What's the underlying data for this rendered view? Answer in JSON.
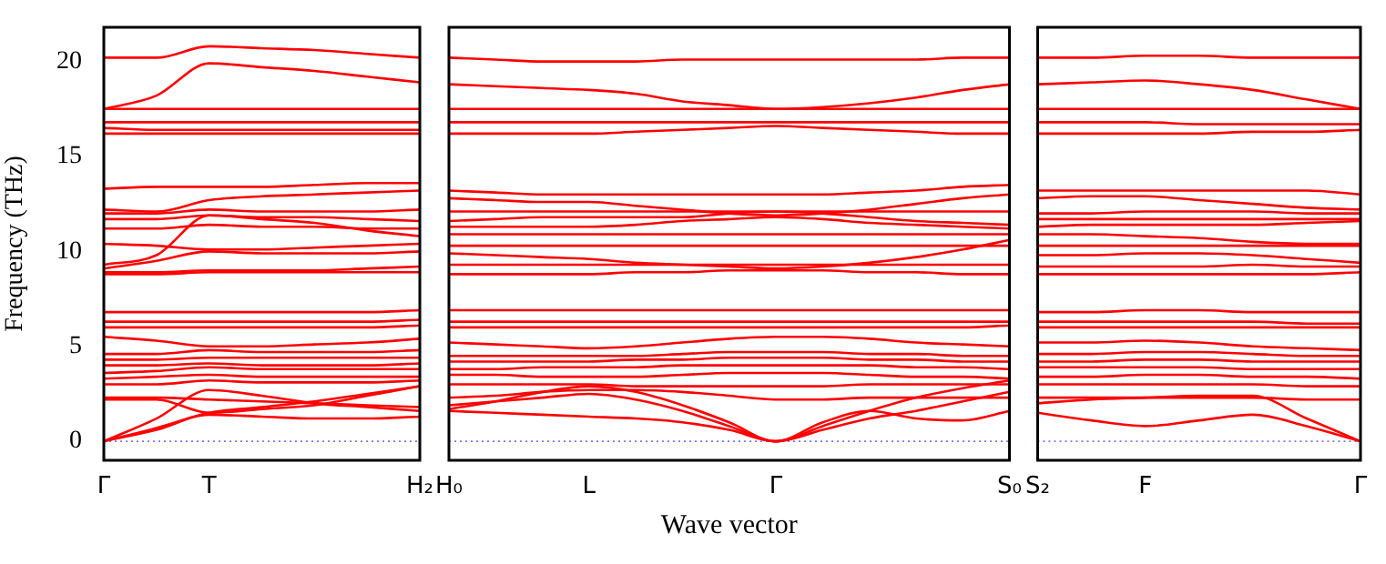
{
  "chart_data": [
    {
      "type": "line",
      "ylabel": "Frequency (THz)",
      "categories": [
        "Γ",
        null,
        "T",
        null,
        null,
        null,
        "H₂"
      ],
      "ylim": [
        -1,
        21.8
      ],
      "yticks": [
        0,
        5,
        10,
        15,
        20
      ],
      "ref_lines": [
        {
          "axis": "y",
          "value": 0,
          "color": "#7777ff",
          "line_style": "dotted"
        }
      ],
      "series": [
        {
          "color": "#ff0000",
          "values": [
            20.2,
            20.2,
            20.8,
            20.7,
            20.6,
            20.4,
            20.2
          ]
        },
        {
          "color": "#ff0000",
          "values": [
            17.5,
            18.2,
            19.9,
            19.7,
            19.5,
            19.2,
            18.9
          ]
        },
        {
          "color": "#ff0000",
          "values": [
            17.5,
            17.5,
            17.5,
            17.5,
            17.5,
            17.5,
            17.5
          ]
        },
        {
          "color": "#ff0000",
          "values": [
            16.8,
            16.8,
            16.8,
            16.8,
            16.8,
            16.8,
            16.8
          ]
        },
        {
          "color": "#ff0000",
          "values": [
            16.5,
            16.4,
            16.4,
            16.4,
            16.4,
            16.4,
            16.4
          ]
        },
        {
          "color": "#ff0000",
          "values": [
            16.2,
            16.2,
            16.2,
            16.2,
            16.2,
            16.2,
            16.2
          ]
        },
        {
          "color": "#ff0000",
          "values": [
            13.3,
            13.4,
            13.4,
            13.4,
            13.5,
            13.6,
            13.6
          ]
        },
        {
          "color": "#ff0000",
          "values": [
            12.2,
            12.1,
            12.7,
            12.9,
            13.0,
            13.1,
            13.2
          ]
        },
        {
          "color": "#ff0000",
          "values": [
            12.0,
            12.0,
            12.2,
            12.1,
            12.1,
            12.1,
            12.2
          ]
        },
        {
          "color": "#ff0000",
          "values": [
            11.7,
            11.7,
            11.9,
            11.8,
            11.8,
            11.7,
            11.6
          ]
        },
        {
          "color": "#ff0000",
          "values": [
            11.2,
            11.2,
            11.4,
            11.3,
            11.3,
            11.2,
            11.2
          ]
        },
        {
          "color": "#ff0000",
          "values": [
            10.4,
            10.3,
            10.1,
            10.1,
            10.2,
            10.3,
            10.4
          ]
        },
        {
          "color": "#ff0000",
          "values": [
            9.3,
            9.8,
            11.9,
            11.7,
            11.5,
            11.1,
            10.8
          ]
        },
        {
          "color": "#ff0000",
          "values": [
            9.1,
            9.5,
            10.0,
            9.9,
            9.9,
            9.9,
            10.0
          ]
        },
        {
          "color": "#ff0000",
          "values": [
            8.9,
            8.9,
            9.0,
            9.0,
            9.0,
            9.1,
            9.2
          ]
        },
        {
          "color": "#ff0000",
          "values": [
            8.8,
            8.8,
            8.9,
            8.9,
            8.9,
            8.9,
            8.9
          ]
        },
        {
          "color": "#ff0000",
          "values": [
            6.8,
            6.8,
            6.8,
            6.8,
            6.8,
            6.8,
            6.9
          ]
        },
        {
          "color": "#ff0000",
          "values": [
            6.3,
            6.3,
            6.3,
            6.3,
            6.3,
            6.3,
            6.4
          ]
        },
        {
          "color": "#ff0000",
          "values": [
            6.0,
            6.0,
            6.0,
            6.0,
            6.0,
            6.0,
            6.1
          ]
        },
        {
          "color": "#ff0000",
          "values": [
            5.5,
            5.3,
            5.0,
            5.0,
            5.1,
            5.2,
            5.4
          ]
        },
        {
          "color": "#ff0000",
          "values": [
            4.6,
            4.6,
            4.8,
            4.7,
            4.7,
            4.7,
            4.8
          ]
        },
        {
          "color": "#ff0000",
          "values": [
            4.3,
            4.3,
            4.4,
            4.4,
            4.4,
            4.4,
            4.4
          ]
        },
        {
          "color": "#ff0000",
          "values": [
            4.0,
            4.0,
            4.1,
            4.0,
            4.0,
            4.0,
            4.1
          ]
        },
        {
          "color": "#ff0000",
          "values": [
            3.6,
            3.7,
            3.9,
            3.8,
            3.8,
            3.8,
            3.8
          ]
        },
        {
          "color": "#ff0000",
          "values": [
            3.3,
            3.4,
            3.5,
            3.4,
            3.4,
            3.4,
            3.4
          ]
        },
        {
          "color": "#ff0000",
          "values": [
            3.0,
            3.0,
            3.2,
            3.1,
            3.1,
            3.1,
            3.2
          ]
        },
        {
          "color": "#ff0000",
          "values": [
            2.3,
            2.3,
            2.2,
            2.1,
            2.0,
            1.9,
            1.8
          ]
        },
        {
          "color": "#ff0000",
          "values": [
            2.2,
            2.2,
            1.5,
            1.7,
            1.9,
            2.4,
            2.9
          ]
        },
        {
          "color": "#ff0000",
          "values": [
            0,
            1.2,
            2.7,
            2.4,
            2.0,
            1.8,
            1.6
          ]
        },
        {
          "color": "#ff0000",
          "values": [
            0,
            0.7,
            1.5,
            1.8,
            2.1,
            2.5,
            2.9
          ]
        },
        {
          "color": "#ff0000",
          "values": [
            0,
            0.6,
            1.4,
            1.3,
            1.2,
            1.2,
            1.3
          ]
        }
      ]
    },
    {
      "type": "line",
      "xlabel": "Wave vector",
      "tick_labels": "x",
      "categories": [
        "H₀",
        null,
        null,
        "L",
        null,
        null,
        null,
        "Γ",
        null,
        null,
        null,
        null,
        "S₀"
      ],
      "ylim": [
        -1,
        21.8
      ],
      "yticks": [
        0,
        5,
        10,
        15,
        20
      ],
      "ref_lines": [
        {
          "axis": "y",
          "value": 0,
          "color": "#7777ff",
          "line_style": "dotted"
        }
      ],
      "series": [
        {
          "color": "#ff0000",
          "values": [
            20.2,
            20.1,
            20.0,
            20.0,
            20.0,
            20.1,
            20.1,
            20.1,
            20.1,
            20.1,
            20.1,
            20.2,
            20.2
          ]
        },
        {
          "color": "#ff0000",
          "values": [
            18.8,
            18.7,
            18.6,
            18.5,
            18.3,
            17.9,
            17.7,
            17.5,
            17.6,
            17.8,
            18.1,
            18.5,
            18.8
          ]
        },
        {
          "color": "#ff0000",
          "values": [
            17.5,
            17.5,
            17.5,
            17.5,
            17.5,
            17.5,
            17.5,
            17.5,
            17.5,
            17.5,
            17.5,
            17.5,
            17.5
          ]
        },
        {
          "color": "#ff0000",
          "values": [
            16.8,
            16.8,
            16.8,
            16.8,
            16.8,
            16.8,
            16.8,
            16.8,
            16.8,
            16.8,
            16.8,
            16.8,
            16.8
          ]
        },
        {
          "color": "#ff0000",
          "values": [
            16.2,
            16.2,
            16.2,
            16.2,
            16.3,
            16.4,
            16.5,
            16.6,
            16.5,
            16.4,
            16.3,
            16.2,
            16.2
          ]
        },
        {
          "color": "#ff0000",
          "values": [
            13.2,
            13.1,
            13.0,
            13.0,
            13.0,
            13.0,
            13.0,
            13.0,
            13.0,
            13.1,
            13.2,
            13.4,
            13.5
          ]
        },
        {
          "color": "#ff0000",
          "values": [
            12.8,
            12.7,
            12.6,
            12.6,
            12.4,
            12.2,
            12.0,
            11.9,
            12.0,
            12.2,
            12.5,
            12.8,
            13.0
          ]
        },
        {
          "color": "#ff0000",
          "values": [
            12.1,
            12.1,
            12.1,
            12.1,
            12.1,
            12.1,
            12.1,
            12.1,
            12.1,
            12.1,
            12.1,
            12.1,
            12.1
          ]
        },
        {
          "color": "#ff0000",
          "values": [
            11.6,
            11.7,
            11.8,
            11.8,
            11.8,
            11.8,
            12.0,
            12.1,
            12.0,
            11.8,
            11.6,
            11.5,
            11.4
          ]
        },
        {
          "color": "#ff0000",
          "values": [
            11.3,
            11.3,
            11.3,
            11.3,
            11.4,
            11.6,
            11.7,
            11.8,
            11.7,
            11.5,
            11.4,
            11.3,
            11.2
          ]
        },
        {
          "color": "#ff0000",
          "values": [
            10.9,
            10.9,
            10.9,
            10.9,
            10.9,
            10.9,
            10.9,
            10.9,
            10.9,
            10.9,
            10.9,
            10.9,
            10.9
          ]
        },
        {
          "color": "#ff0000",
          "values": [
            10.3,
            10.3,
            10.3,
            10.3,
            10.3,
            10.3,
            10.3,
            10.3,
            10.3,
            10.3,
            10.3,
            10.3,
            10.3
          ]
        },
        {
          "color": "#ff0000",
          "values": [
            9.9,
            9.8,
            9.7,
            9.6,
            9.4,
            9.3,
            9.2,
            9.1,
            9.2,
            9.4,
            9.7,
            10.1,
            10.6
          ]
        },
        {
          "color": "#ff0000",
          "values": [
            9.3,
            9.3,
            9.3,
            9.3,
            9.3,
            9.3,
            9.3,
            9.3,
            9.3,
            9.3,
            9.3,
            9.3,
            9.3
          ]
        },
        {
          "color": "#ff0000",
          "values": [
            8.8,
            8.8,
            8.8,
            8.8,
            8.9,
            8.9,
            9.0,
            9.0,
            9.0,
            8.9,
            8.9,
            8.8,
            8.8
          ]
        },
        {
          "color": "#ff0000",
          "values": [
            6.9,
            6.9,
            6.9,
            6.9,
            6.9,
            6.9,
            6.9,
            6.9,
            6.9,
            6.9,
            6.9,
            6.9,
            6.9
          ]
        },
        {
          "color": "#ff0000",
          "values": [
            6.3,
            6.3,
            6.3,
            6.3,
            6.3,
            6.3,
            6.3,
            6.3,
            6.3,
            6.3,
            6.3,
            6.3,
            6.3
          ]
        },
        {
          "color": "#ff0000",
          "values": [
            6.0,
            6.0,
            6.0,
            6.0,
            6.0,
            6.0,
            6.0,
            6.0,
            6.0,
            6.0,
            6.0,
            6.0,
            6.1
          ]
        },
        {
          "color": "#ff0000",
          "values": [
            5.2,
            5.1,
            5.0,
            4.9,
            5.0,
            5.2,
            5.4,
            5.5,
            5.5,
            5.4,
            5.2,
            5.1,
            5.0
          ]
        },
        {
          "color": "#ff0000",
          "values": [
            4.5,
            4.5,
            4.5,
            4.5,
            4.5,
            4.6,
            4.7,
            4.7,
            4.7,
            4.6,
            4.6,
            4.5,
            4.5
          ]
        },
        {
          "color": "#ff0000",
          "values": [
            4.2,
            4.2,
            4.2,
            4.2,
            4.3,
            4.3,
            4.4,
            4.4,
            4.4,
            4.3,
            4.3,
            4.2,
            4.2
          ]
        },
        {
          "color": "#ff0000",
          "values": [
            3.8,
            3.8,
            3.9,
            3.9,
            3.9,
            4.0,
            4.0,
            4.0,
            4.0,
            4.0,
            3.9,
            3.9,
            3.8
          ]
        },
        {
          "color": "#ff0000",
          "values": [
            3.5,
            3.5,
            3.4,
            3.4,
            3.4,
            3.5,
            3.6,
            3.6,
            3.6,
            3.5,
            3.4,
            3.4,
            3.3
          ]
        },
        {
          "color": "#ff0000",
          "values": [
            3.0,
            3.0,
            3.0,
            3.0,
            2.9,
            2.9,
            2.9,
            2.9,
            2.9,
            3.0,
            3.0,
            3.0,
            3.0
          ]
        },
        {
          "color": "#ff0000",
          "values": [
            2.3,
            2.4,
            2.6,
            2.7,
            2.7,
            2.6,
            2.4,
            2.2,
            2.2,
            2.3,
            2.3,
            2.3,
            2.3
          ]
        },
        {
          "color": "#ff0000",
          "values": [
            1.9,
            2.1,
            2.3,
            2.5,
            2.2,
            1.6,
            0.8,
            0,
            0.8,
            1.6,
            2.3,
            2.8,
            3.2
          ]
        },
        {
          "color": "#ff0000",
          "values": [
            1.6,
            1.5,
            1.4,
            1.3,
            1.2,
            1.0,
            0.6,
            0,
            0.6,
            1.2,
            1.6,
            2.1,
            2.6
          ]
        },
        {
          "color": "#ff0000",
          "values": [
            1.7,
            2.1,
            2.6,
            2.9,
            2.6,
            1.9,
            1.0,
            0,
            1.0,
            1.6,
            1.2,
            1.1,
            1.6
          ]
        }
      ]
    },
    {
      "type": "line",
      "tick_labels": "x",
      "categories": [
        "S₂",
        null,
        "F",
        null,
        null,
        null,
        "Γ"
      ],
      "ylim": [
        -1,
        21.8
      ],
      "yticks": [
        0,
        5,
        10,
        15,
        20
      ],
      "ref_lines": [
        {
          "axis": "y",
          "value": 0,
          "color": "#7777ff",
          "line_style": "dotted"
        }
      ],
      "series": [
        {
          "color": "#ff0000",
          "values": [
            20.2,
            20.2,
            20.3,
            20.3,
            20.2,
            20.2,
            20.2
          ]
        },
        {
          "color": "#ff0000",
          "values": [
            18.8,
            18.9,
            19.0,
            18.8,
            18.5,
            18.0,
            17.5
          ]
        },
        {
          "color": "#ff0000",
          "values": [
            17.5,
            17.5,
            17.5,
            17.5,
            17.5,
            17.5,
            17.5
          ]
        },
        {
          "color": "#ff0000",
          "values": [
            16.8,
            16.8,
            16.8,
            16.7,
            16.7,
            16.7,
            16.7
          ]
        },
        {
          "color": "#ff0000",
          "values": [
            16.2,
            16.2,
            16.2,
            16.2,
            16.3,
            16.3,
            16.4
          ]
        },
        {
          "color": "#ff0000",
          "values": [
            13.2,
            13.2,
            13.2,
            13.2,
            13.2,
            13.2,
            13.0
          ]
        },
        {
          "color": "#ff0000",
          "values": [
            12.8,
            12.9,
            12.9,
            12.7,
            12.5,
            12.3,
            12.2
          ]
        },
        {
          "color": "#ff0000",
          "values": [
            12.0,
            12.0,
            12.1,
            12.1,
            12.1,
            12.0,
            12.0
          ]
        },
        {
          "color": "#ff0000",
          "values": [
            11.7,
            11.7,
            11.7,
            11.7,
            11.7,
            11.7,
            11.7
          ]
        },
        {
          "color": "#ff0000",
          "values": [
            11.3,
            11.4,
            11.4,
            11.4,
            11.4,
            11.5,
            11.6
          ]
        },
        {
          "color": "#ff0000",
          "values": [
            10.9,
            10.9,
            10.8,
            10.7,
            10.5,
            10.4,
            10.4
          ]
        },
        {
          "color": "#ff0000",
          "values": [
            10.3,
            10.3,
            10.3,
            10.3,
            10.3,
            10.3,
            10.3
          ]
        },
        {
          "color": "#ff0000",
          "values": [
            9.8,
            9.8,
            9.9,
            9.9,
            9.8,
            9.6,
            9.4
          ]
        },
        {
          "color": "#ff0000",
          "values": [
            9.2,
            9.2,
            9.2,
            9.2,
            9.3,
            9.2,
            9.2
          ]
        },
        {
          "color": "#ff0000",
          "values": [
            8.8,
            8.8,
            8.8,
            8.8,
            8.8,
            8.8,
            8.9
          ]
        },
        {
          "color": "#ff0000",
          "values": [
            6.8,
            6.8,
            6.9,
            6.9,
            6.8,
            6.8,
            6.8
          ]
        },
        {
          "color": "#ff0000",
          "values": [
            6.3,
            6.3,
            6.3,
            6.3,
            6.3,
            6.2,
            6.2
          ]
        },
        {
          "color": "#ff0000",
          "values": [
            6.0,
            6.0,
            6.0,
            6.0,
            6.0,
            6.0,
            6.0
          ]
        },
        {
          "color": "#ff0000",
          "values": [
            5.2,
            5.2,
            5.3,
            5.2,
            5.0,
            4.9,
            4.8
          ]
        },
        {
          "color": "#ff0000",
          "values": [
            4.6,
            4.6,
            4.7,
            4.7,
            4.6,
            4.5,
            4.5
          ]
        },
        {
          "color": "#ff0000",
          "values": [
            4.2,
            4.2,
            4.3,
            4.3,
            4.2,
            4.2,
            4.2
          ]
        },
        {
          "color": "#ff0000",
          "values": [
            3.9,
            3.9,
            3.9,
            3.9,
            3.8,
            3.8,
            3.8
          ]
        },
        {
          "color": "#ff0000",
          "values": [
            3.4,
            3.4,
            3.5,
            3.5,
            3.4,
            3.4,
            3.3
          ]
        },
        {
          "color": "#ff0000",
          "values": [
            3.0,
            3.0,
            3.0,
            3.0,
            3.0,
            2.9,
            2.9
          ]
        },
        {
          "color": "#ff0000",
          "values": [
            2.3,
            2.3,
            2.3,
            2.3,
            2.3,
            2.2,
            2.2
          ]
        },
        {
          "color": "#ff0000",
          "values": [
            2.0,
            2.2,
            2.3,
            2.4,
            2.4,
            1.2,
            0
          ]
        },
        {
          "color": "#ff0000",
          "values": [
            1.5,
            1.1,
            0.8,
            1.1,
            1.4,
            0.8,
            0
          ]
        }
      ]
    }
  ]
}
